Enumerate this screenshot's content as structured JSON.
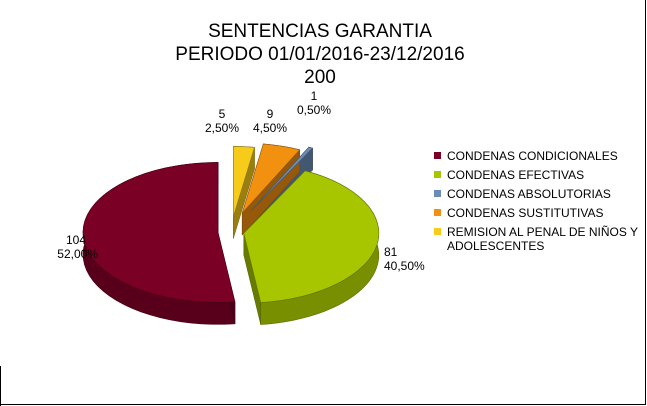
{
  "chart_data": {
    "type": "pie",
    "title": [
      "SENTENCIAS GARANTIA",
      "PERIODO 01/01/2016-23/12/2016",
      "200"
    ],
    "total": 200,
    "legend_position": "right",
    "slices": [
      {
        "label": "CONDENAS CONDICIONALES",
        "value": 104,
        "percent_label": "52,00%",
        "color": "#7A0025"
      },
      {
        "label": "CONDENAS EFECTIVAS",
        "value": 81,
        "percent_label": "40,50%",
        "color": "#A7C600"
      },
      {
        "label": "CONDENAS ABSOLUTORIAS",
        "value": 1,
        "percent_label": "0,50%",
        "color": "#6B8CB5"
      },
      {
        "label": "CONDENAS SUSTITUTIVAS",
        "value": 9,
        "percent_label": "4,50%",
        "color": "#F2900F"
      },
      {
        "label": "REMISION AL PENAL DE NIÑOS Y ADOLESCENTES",
        "value": 5,
        "percent_label": "2,50%",
        "color": "#F7CB1A"
      }
    ]
  }
}
